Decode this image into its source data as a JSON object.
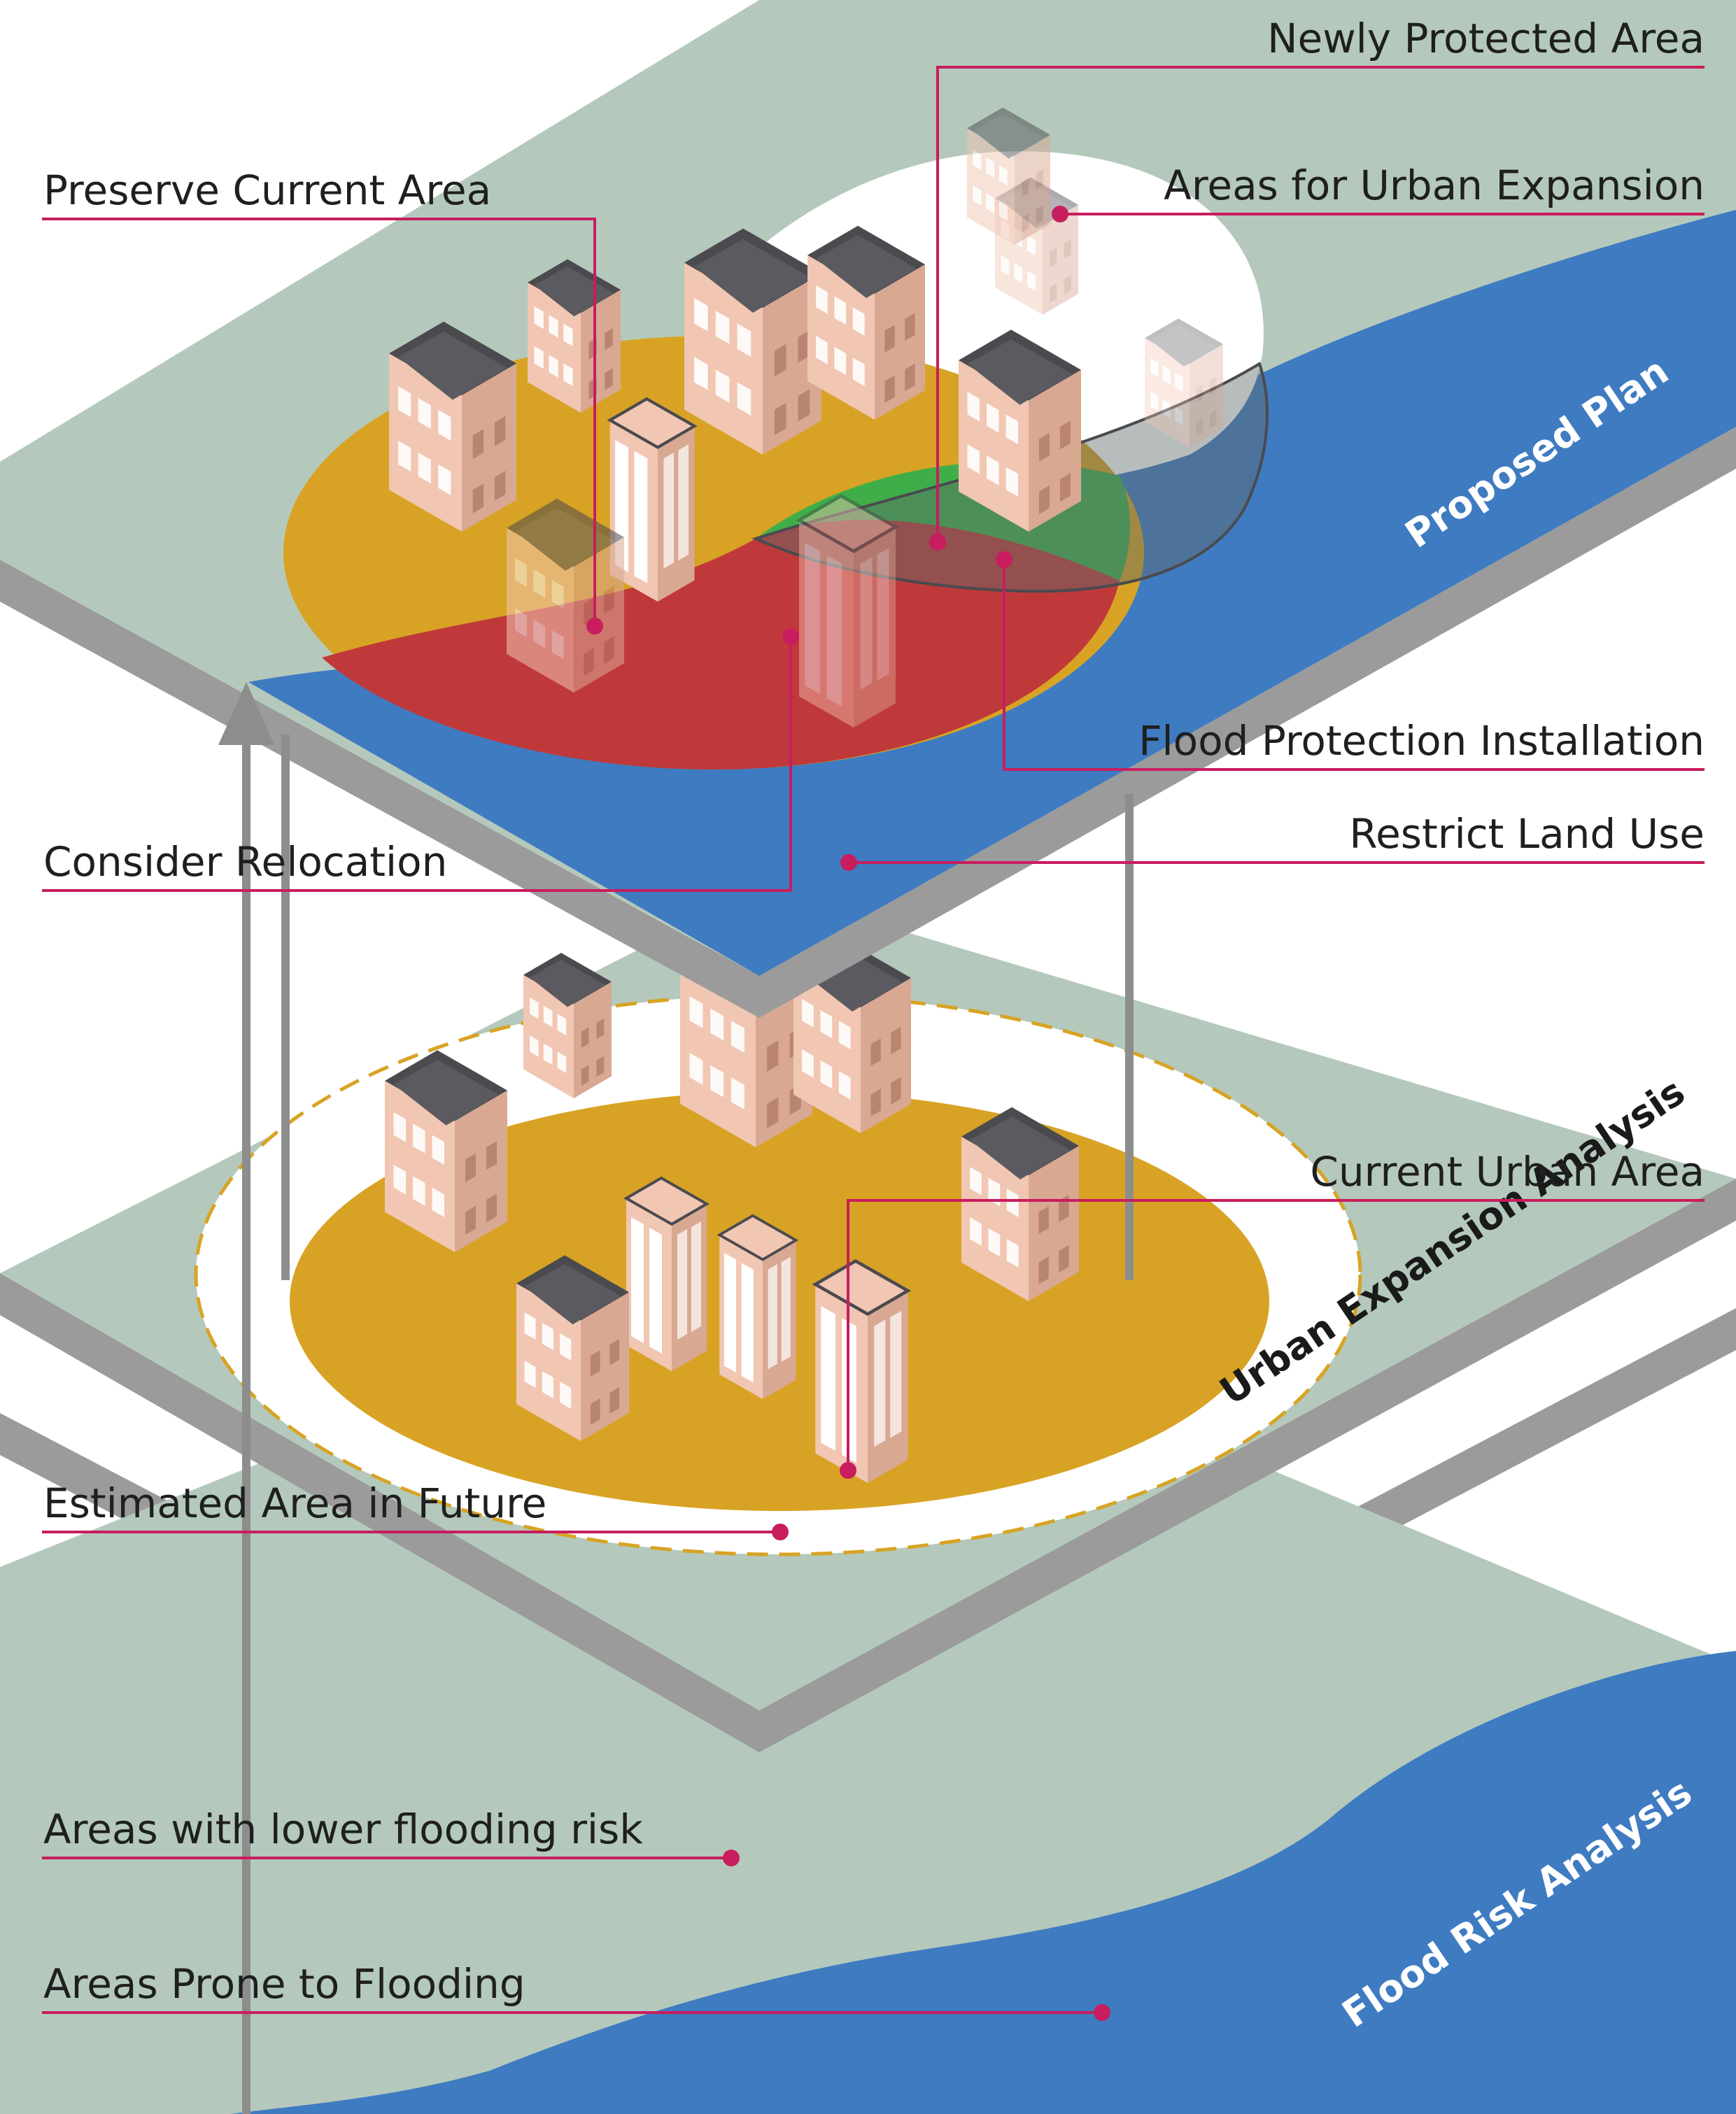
{
  "colors": {
    "land": "#b4c9bc",
    "river": "#3f7bc1",
    "slab_edge": "#9b9b9b",
    "current_area": "#d8a324",
    "relocation": "#c0393a",
    "protected": "#3fae49",
    "installation": "#5f6a6a",
    "restrict": "#3f7bc1",
    "building_wall": "#f1c6b2",
    "building_roof": "#4a4a4f",
    "leader": "#c81d5e",
    "arrow": "#8d8d8d"
  },
  "layers": {
    "plan": "Proposed Plan",
    "urban": "Urban Expansion Analysis",
    "flood": "Flood Risk Analysis"
  },
  "labels": {
    "newly_protected": "Newly Protected Area",
    "urban_expansion": "Areas for Urban Expansion",
    "preserve": "Preserve Current Area",
    "flood_installation": "Flood Protection Installation",
    "restrict": "Restrict Land Use",
    "relocation": "Consider Relocation",
    "current_urban": "Current Urban Area",
    "estimated_future": "Estimated Area in Future",
    "lower_risk": "Areas with lower flooding risk",
    "prone": "Areas Prone to Flooding"
  },
  "icons": {
    "building": "isometric-building-icon",
    "arrow": "up-arrow-icon",
    "marker": "dot-marker-icon"
  }
}
